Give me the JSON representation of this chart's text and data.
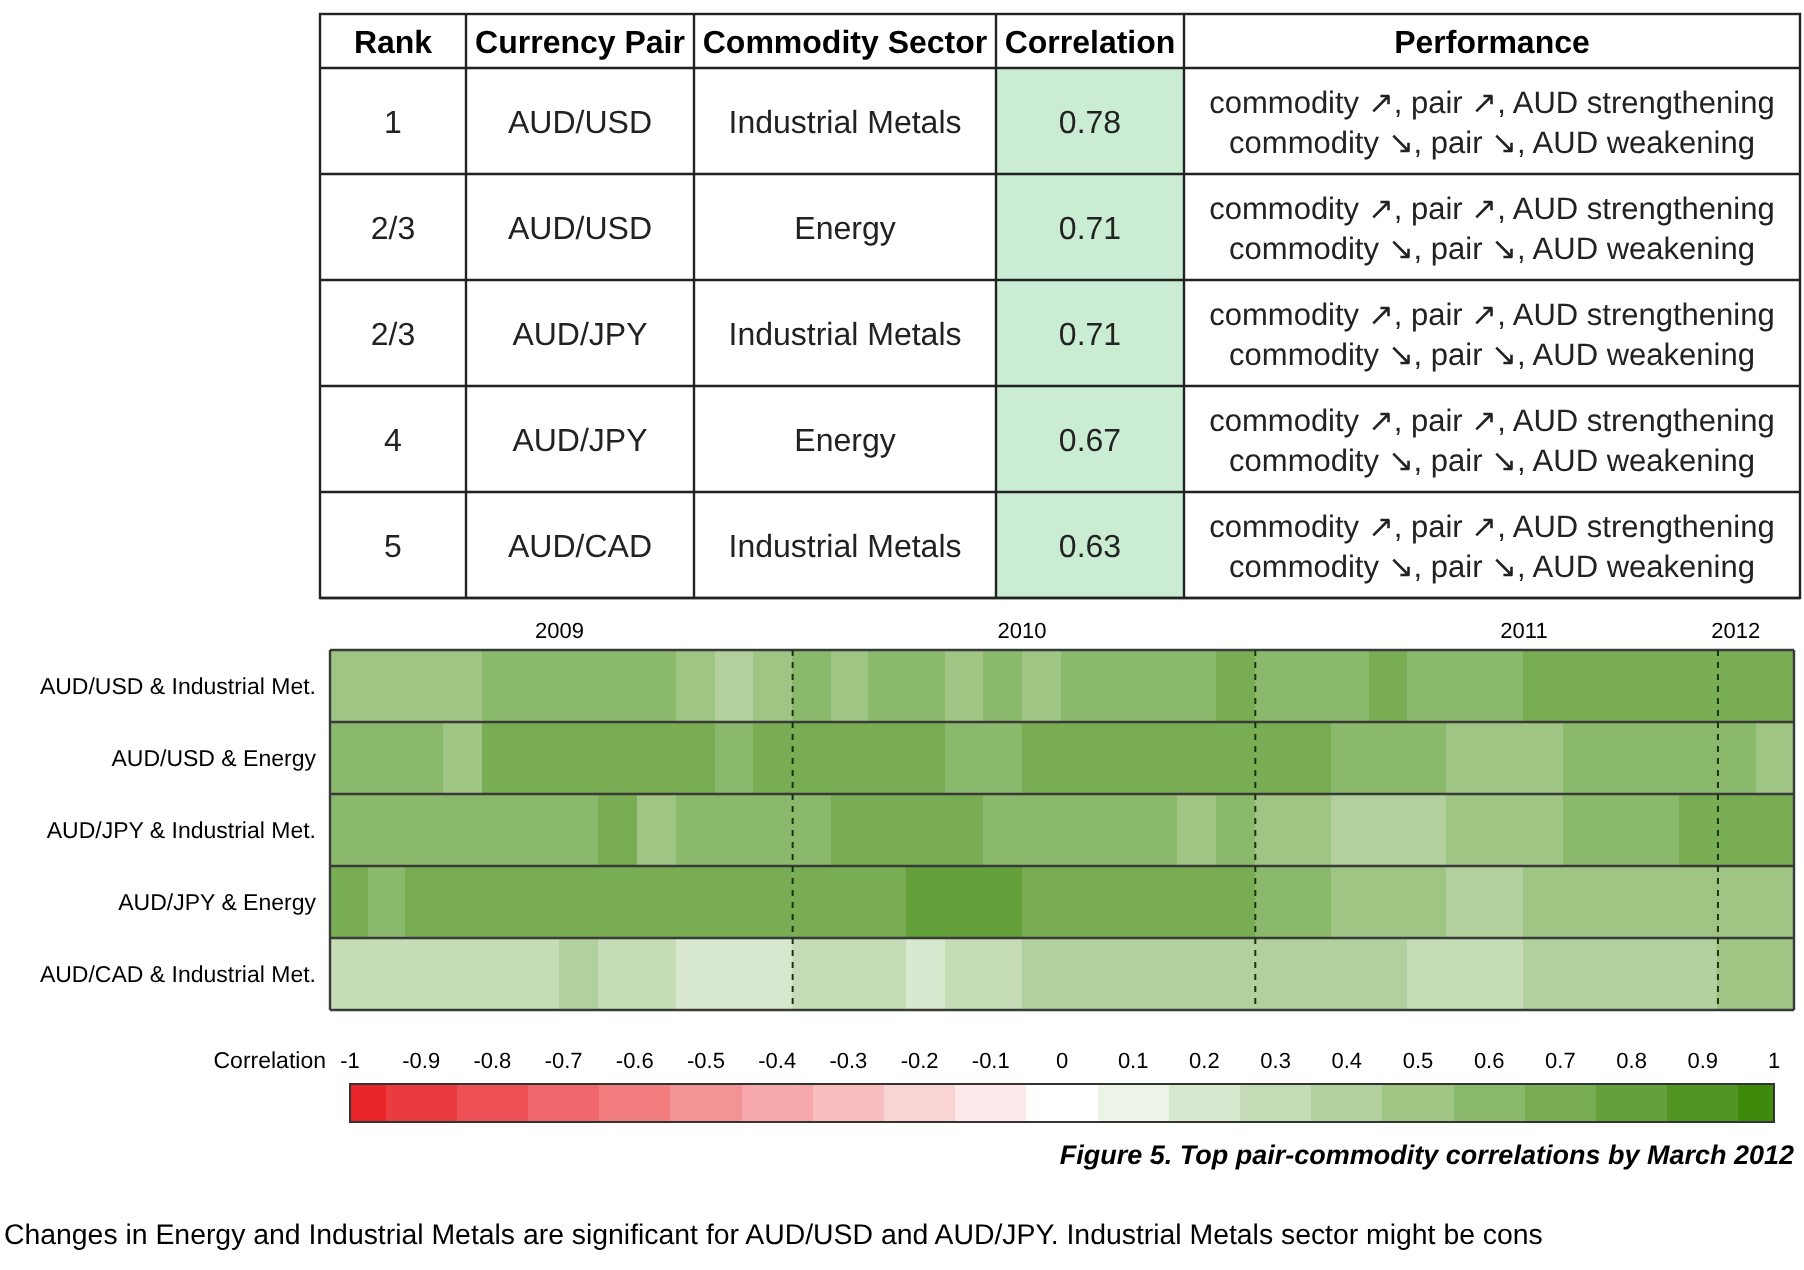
{
  "chart_data": [
    {
      "type": "other",
      "categories": [
        "Rank",
        "Currency Pair",
        "Commodity Sector",
        "Correlation",
        "Performance"
      ],
      "colors": [
        null,
        null,
        null,
        "#c9ecd3",
        null
      ],
      "cell_labels": [
        [
          "1",
          "AUD/USD",
          "Industrial Metals",
          "0.78",
          "commodity ↗, pair ↗, AUD strengthening\ncommodity ↘, pair ↘, AUD weakening"
        ],
        [
          "2/3",
          "AUD/USD",
          "Energy",
          "0.71",
          "commodity ↗, pair ↗, AUD strengthening\ncommodity ↘, pair ↘, AUD weakening"
        ],
        [
          "2/3",
          "AUD/JPY",
          "Industrial Metals",
          "0.71",
          "commodity ↗, pair ↗, AUD strengthening\ncommodity ↘, pair ↘, AUD weakening"
        ],
        [
          "4",
          "AUD/JPY",
          "Energy",
          "0.67",
          "commodity ↗, pair ↗, AUD strengthening\ncommodity ↘, pair ↘, AUD weakening"
        ],
        [
          "5",
          "AUD/CAD",
          "Industrial Metals",
          "0.63",
          "commodity ↗, pair ↗, AUD strengthening\ncommodity ↘, pair ↘, AUD weakening"
        ]
      ]
    },
    {
      "type": "heatmap",
      "x": [
        "2009-01-16",
        "2009-02-15",
        "2009-03-16",
        "2009-04-16",
        "2009-05-16",
        "2009-06-16",
        "2009-07-16",
        "2009-08-16",
        "2009-09-16",
        "2009-10-16",
        "2009-11-16",
        "2009-12-16",
        "2010-01-16",
        "2010-02-15",
        "2010-03-16",
        "2010-04-16",
        "2010-05-16",
        "2010-06-16",
        "2010-07-16",
        "2010-08-16",
        "2010-09-16",
        "2010-10-16",
        "2010-11-16",
        "2010-12-16",
        "2011-01-16",
        "2011-02-15",
        "2011-03-16",
        "2011-04-16",
        "2011-05-16",
        "2011-06-16",
        "2011-07-16",
        "2011-08-16",
        "2011-09-16",
        "2011-10-16",
        "2011-11-16",
        "2011-12-16",
        "2012-01-16",
        "2012-02-15"
      ],
      "xlim": [
        "2009-01",
        "2012-03"
      ],
      "xticks": [
        {
          "value": "2009-07",
          "label": "2009"
        },
        {
          "value": "2010-07",
          "label": "2010"
        },
        {
          "value": "2011-08",
          "label": "2011"
        },
        {
          "value": "2012-01-15",
          "label": "2012"
        }
      ],
      "y_categories": [
        "AUD/USD & Industrial Met.",
        "AUD/USD & Energy",
        "AUD/JPY & Industrial Met.",
        "AUD/JPY & Energy",
        "AUD/CAD & Industrial Met."
      ],
      "cells": [
        [
          0.5,
          0.5,
          0.5,
          0.5,
          0.6,
          0.6,
          0.6,
          0.6,
          0.6,
          0.5,
          0.4,
          0.5,
          0.6,
          0.5,
          0.6,
          0.6,
          0.5,
          0.6,
          0.5,
          0.6,
          0.6,
          0.6,
          0.6,
          0.7,
          0.6,
          0.6,
          0.6,
          0.7,
          0.6,
          0.6,
          0.6,
          0.7,
          0.7,
          0.7,
          0.7,
          0.7,
          0.7,
          0.7
        ],
        [
          0.6,
          0.6,
          0.6,
          0.5,
          0.7,
          0.7,
          0.7,
          0.7,
          0.7,
          0.7,
          0.6,
          0.7,
          0.7,
          0.7,
          0.7,
          0.7,
          0.6,
          0.6,
          0.7,
          0.7,
          0.7,
          0.7,
          0.7,
          0.7,
          0.7,
          0.7,
          0.6,
          0.6,
          0.6,
          0.5,
          0.5,
          0.5,
          0.6,
          0.6,
          0.6,
          0.6,
          0.6,
          0.5
        ],
        [
          0.6,
          0.6,
          0.6,
          0.6,
          0.6,
          0.6,
          0.6,
          0.7,
          0.5,
          0.6,
          0.6,
          0.6,
          0.6,
          0.7,
          0.7,
          0.7,
          0.7,
          0.6,
          0.6,
          0.6,
          0.6,
          0.6,
          0.5,
          0.6,
          0.5,
          0.5,
          0.4,
          0.4,
          0.4,
          0.5,
          0.5,
          0.5,
          0.6,
          0.6,
          0.6,
          0.7,
          0.7,
          0.7
        ],
        [
          0.7,
          0.6,
          0.7,
          0.7,
          0.7,
          0.7,
          0.7,
          0.7,
          0.7,
          0.7,
          0.7,
          0.7,
          0.7,
          0.7,
          0.7,
          0.8,
          0.8,
          0.8,
          0.7,
          0.7,
          0.7,
          0.7,
          0.7,
          0.7,
          0.6,
          0.6,
          0.5,
          0.5,
          0.5,
          0.4,
          0.4,
          0.5,
          0.5,
          0.5,
          0.5,
          0.5,
          0.5,
          0.5
        ],
        [
          0.3,
          0.3,
          0.3,
          0.3,
          0.3,
          0.3,
          0.4,
          0.3,
          0.3,
          0.2,
          0.2,
          0.2,
          0.3,
          0.3,
          0.3,
          0.2,
          0.3,
          0.3,
          0.4,
          0.4,
          0.4,
          0.4,
          0.4,
          0.4,
          0.4,
          0.4,
          0.4,
          0.4,
          0.3,
          0.3,
          0.3,
          0.4,
          0.4,
          0.4,
          0.4,
          0.4,
          0.5,
          0.5
        ]
      ],
      "ref_lines": [
        {
          "axis": "x",
          "value": "2010-01",
          "line_style": "dashed"
        },
        {
          "axis": "x",
          "value": "2011-01",
          "line_style": "dashed"
        },
        {
          "axis": "x",
          "value": "2012-01",
          "line_style": "dashed"
        }
      ],
      "clabel": "Correlation",
      "clim": [
        -1,
        1
      ],
      "cticks": [
        -1,
        -0.9,
        -0.8,
        -0.7,
        -0.6,
        -0.5,
        -0.4,
        -0.3,
        -0.2,
        -0.1,
        0,
        0.1,
        0.2,
        0.3,
        0.4,
        0.5,
        0.6,
        0.7,
        0.8,
        0.9,
        1
      ],
      "annotations": [
        "Figure 5. Top pair-commodity correlations by March 2012",
        "Changes in Energy and Industrial Metals are significant for AUD/USD and AUD/JPY. Industrial Metals sector might be cons"
      ]
    }
  ]
}
